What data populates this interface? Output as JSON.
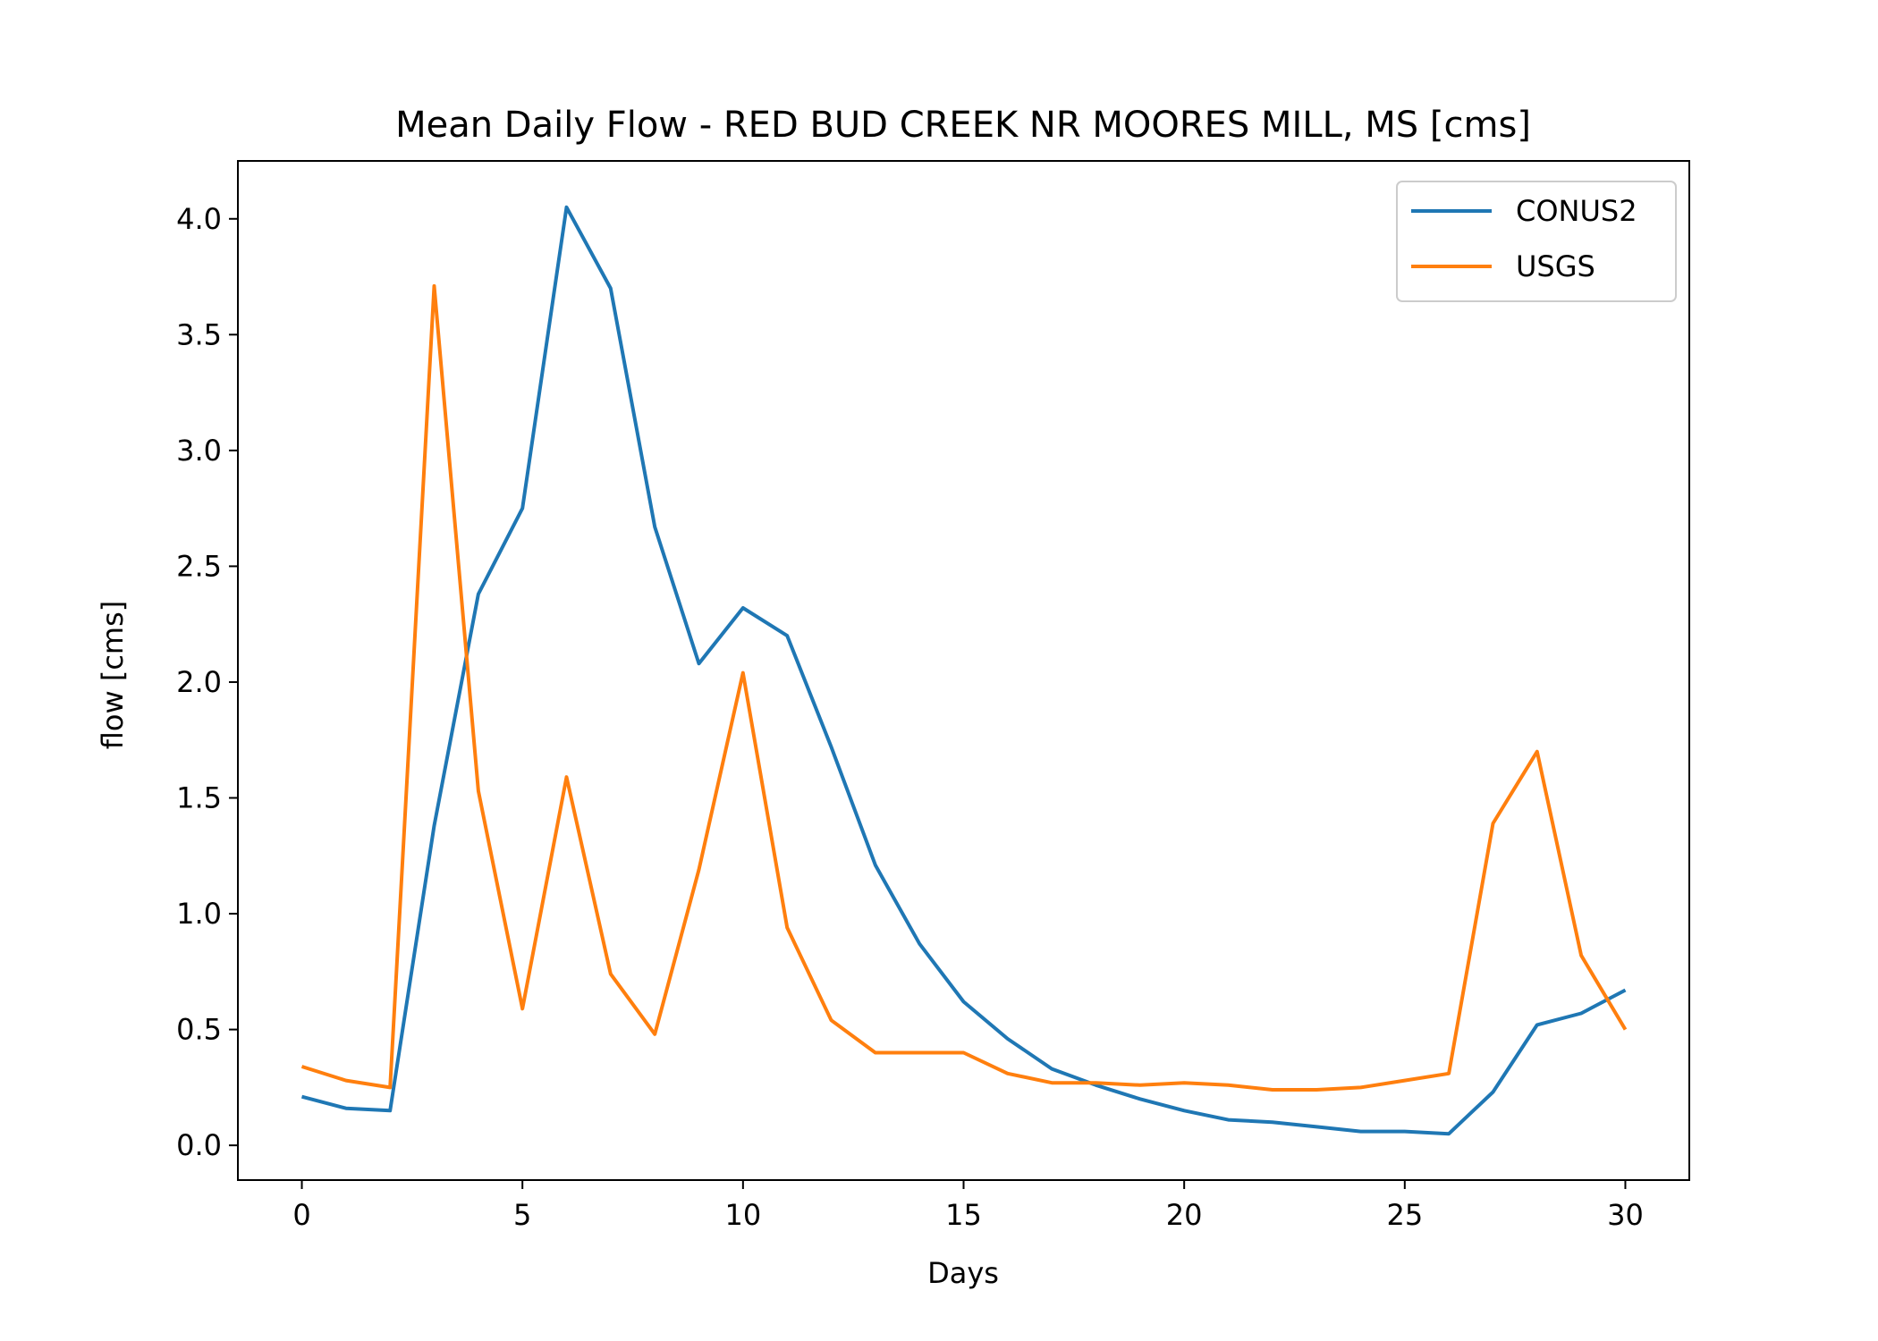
{
  "chart_data": {
    "type": "line",
    "title": "Mean Daily Flow - RED BUD CREEK NR MOORES MILL, MS [cms]",
    "xlabel": "Days",
    "ylabel": "flow [cms]",
    "xlim": [
      -1.45,
      31.45
    ],
    "ylim": [
      -0.15,
      4.25
    ],
    "xticks": [
      0,
      5,
      10,
      15,
      20,
      25,
      30
    ],
    "xtick_labels": [
      "0",
      "5",
      "10",
      "15",
      "20",
      "25",
      "30"
    ],
    "yticks": [
      0.0,
      0.5,
      1.0,
      1.5,
      2.0,
      2.5,
      3.0,
      3.5,
      4.0
    ],
    "ytick_labels": [
      "0.0",
      "0.5",
      "1.0",
      "1.5",
      "2.0",
      "2.5",
      "3.0",
      "3.5",
      "4.0"
    ],
    "grid": false,
    "legend_position": "top-right",
    "x": [
      0,
      1,
      2,
      3,
      4,
      5,
      6,
      7,
      8,
      9,
      10,
      11,
      12,
      13,
      14,
      15,
      16,
      17,
      18,
      19,
      20,
      21,
      22,
      23,
      24,
      25,
      26,
      27,
      28,
      29,
      30
    ],
    "series": [
      {
        "name": "CONUS2",
        "color": "#1f77b4",
        "values": [
          0.21,
          0.16,
          0.15,
          1.38,
          2.38,
          2.75,
          4.05,
          3.7,
          2.67,
          2.08,
          2.32,
          2.2,
          1.72,
          1.21,
          0.87,
          0.62,
          0.46,
          0.33,
          0.26,
          0.2,
          0.15,
          0.11,
          0.1,
          0.08,
          0.06,
          0.06,
          0.05,
          0.23,
          0.52,
          0.57,
          0.67
        ]
      },
      {
        "name": "USGS",
        "color": "#ff7f0e",
        "values": [
          0.34,
          0.28,
          0.25,
          3.71,
          1.53,
          0.59,
          1.59,
          0.74,
          0.48,
          1.19,
          2.04,
          0.94,
          0.54,
          0.4,
          0.4,
          0.4,
          0.31,
          0.27,
          0.27,
          0.26,
          0.27,
          0.26,
          0.24,
          0.24,
          0.25,
          0.28,
          0.31,
          1.39,
          1.7,
          0.82,
          0.5
        ]
      }
    ]
  }
}
